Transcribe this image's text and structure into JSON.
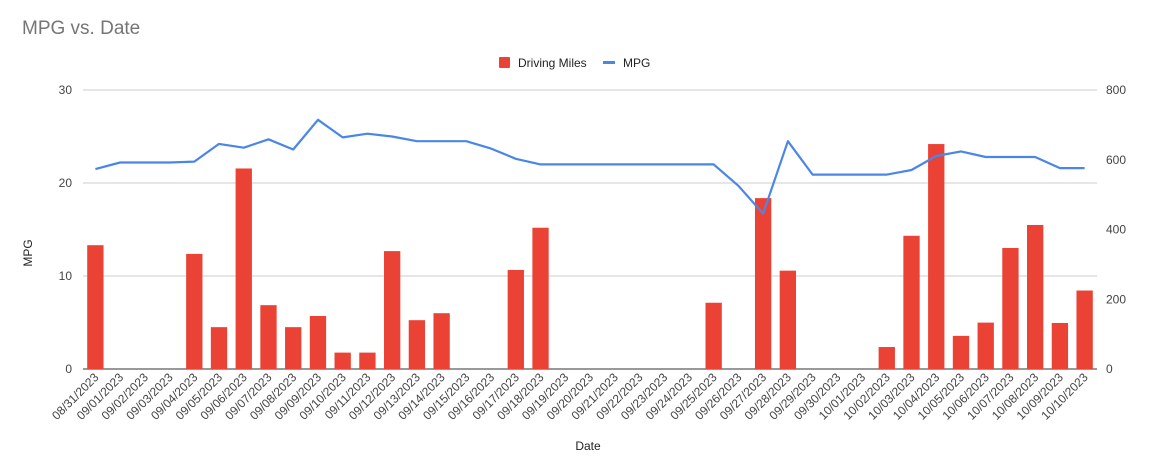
{
  "chart_data": {
    "type": "bar+line",
    "title": "MPG vs. Date",
    "xlabel": "Date",
    "ylabel_left": "MPG",
    "ylabel_right": "",
    "y_left_lim": [
      0,
      30
    ],
    "y_left_ticks": [
      "0",
      "10",
      "20",
      "30"
    ],
    "y_right_lim": [
      0,
      800
    ],
    "y_right_ticks": [
      "0",
      "200",
      "400",
      "600",
      "800"
    ],
    "grid": true,
    "legend_position": "top-center",
    "categories": [
      "08/31/2023",
      "09/01/2023",
      "09/02/2023",
      "09/03/2023",
      "09/04/2023",
      "09/05/2023",
      "09/06/2023",
      "09/07/2023",
      "09/08/2023",
      "09/09/2023",
      "09/10/2023",
      "09/11/2023",
      "09/12/2023",
      "09/13/2023",
      "09/14/2023",
      "09/15/2023",
      "09/16/2023",
      "09/17/2023",
      "09/18/2023",
      "09/19/2023",
      "09/20/2023",
      "09/21/2023",
      "09/22/2023",
      "09/23/2023",
      "09/24/2023",
      "09/25/2023",
      "09/26/2023",
      "09/27/2023",
      "09/28/2023",
      "09/29/2023",
      "09/30/2023",
      "10/01/2023",
      "10/02/2023",
      "10/03/2023",
      "10/04/2023",
      "10/05/2023",
      "10/06/2023",
      "10/07/2023",
      "10/08/2023",
      "10/09/2023",
      "10/10/2023"
    ],
    "series": [
      {
        "name": "Driving Miles",
        "type": "bar",
        "axis": "right",
        "color": "#ea4335",
        "values": [
          355,
          null,
          null,
          null,
          330,
          120,
          575,
          183,
          120,
          152,
          47,
          47,
          338,
          140,
          160,
          null,
          null,
          284,
          405,
          null,
          null,
          null,
          null,
          null,
          null,
          190,
          null,
          490,
          282,
          null,
          null,
          null,
          63,
          382,
          645,
          95,
          133,
          347,
          413,
          132,
          225
        ]
      },
      {
        "name": "MPG",
        "type": "line",
        "axis": "left",
        "color": "#4a86e8",
        "values": [
          21.5,
          22.2,
          22.2,
          22.2,
          22.3,
          24.2,
          23.8,
          24.7,
          23.6,
          26.8,
          24.9,
          25.3,
          25.0,
          24.5,
          24.5,
          24.5,
          23.7,
          22.6,
          22.0,
          22.0,
          22.0,
          22.0,
          22.0,
          22.0,
          22.0,
          22.0,
          19.7,
          16.7,
          24.5,
          20.9,
          20.9,
          20.9,
          20.9,
          21.4,
          22.9,
          23.4,
          22.8,
          22.8,
          22.8,
          21.6,
          21.6
        ]
      }
    ]
  }
}
